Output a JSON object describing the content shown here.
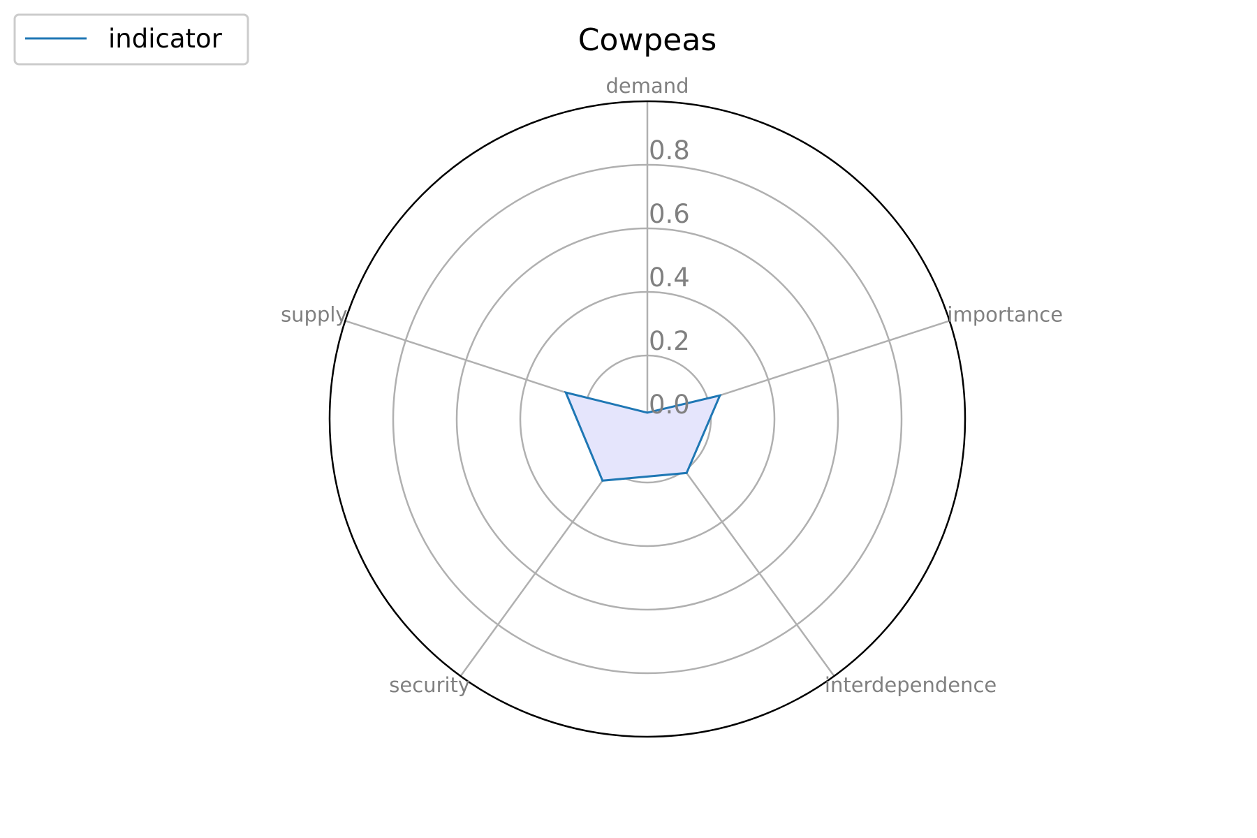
{
  "chart_data": {
    "type": "radar",
    "title": "Cowpeas",
    "categories": [
      "demand",
      "importance",
      "interdependence",
      "security",
      "supply"
    ],
    "series": [
      {
        "name": "indicator",
        "values": [
          0.02,
          0.24,
          0.21,
          0.24,
          0.27
        ]
      }
    ],
    "rlim": [
      0,
      1.0
    ],
    "r_ticks": [
      0.0,
      0.2,
      0.4,
      0.6,
      0.8
    ],
    "r_tick_labels": [
      "0.0",
      "0.2",
      "0.4",
      "0.6",
      "0.8"
    ],
    "grid": true,
    "legend": "top-left",
    "colors": {
      "line": "#1f77b4",
      "fill": "#e5e5fc",
      "grid": "#b0b0b0",
      "outer_circle": "#000000",
      "label": "#808080"
    }
  }
}
